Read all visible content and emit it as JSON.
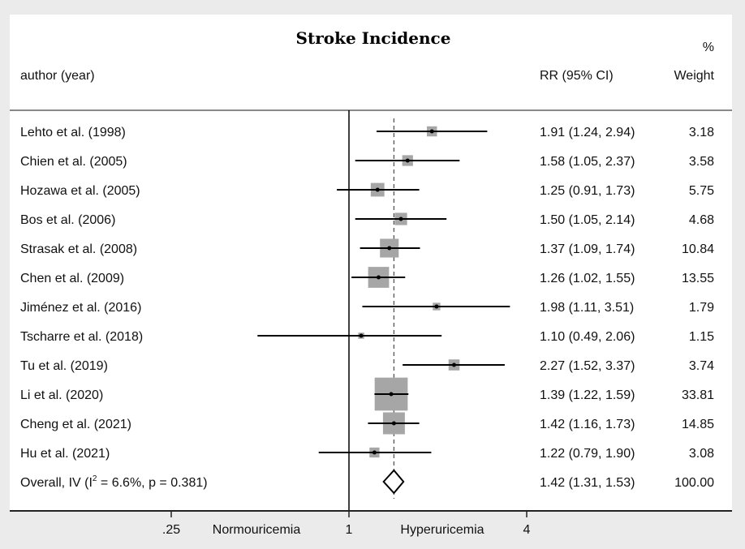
{
  "chart_data": {
    "type": "forest",
    "title": "Stroke Incidence",
    "headers": {
      "study": "author (year)",
      "effect": "RR (95% CI)",
      "weight_top": "%",
      "weight": "Weight"
    },
    "xscale": "log",
    "xticks": [
      {
        "value": 0.25,
        "label": ".25"
      },
      {
        "value": 1,
        "label": "1"
      },
      {
        "value": 4,
        "label": "4"
      }
    ],
    "xlabel_left": "Normouricemia",
    "xlabel_right": "Hyperuricemia",
    "null_line": 1,
    "studies": [
      {
        "label": "Lehto et al. (1998)",
        "rr": 1.91,
        "lo": 1.24,
        "hi": 2.94,
        "ci_text": "1.91 (1.24, 2.94)",
        "weight": "3.18"
      },
      {
        "label": "Chien et al. (2005)",
        "rr": 1.58,
        "lo": 1.05,
        "hi": 2.37,
        "ci_text": "1.58 (1.05, 2.37)",
        "weight": "3.58"
      },
      {
        "label": "Hozawa et al. (2005)",
        "rr": 1.25,
        "lo": 0.91,
        "hi": 1.73,
        "ci_text": "1.25 (0.91, 1.73)",
        "weight": "5.75"
      },
      {
        "label": "Bos et al. (2006)",
        "rr": 1.5,
        "lo": 1.05,
        "hi": 2.14,
        "ci_text": "1.50 (1.05, 2.14)",
        "weight": "4.68"
      },
      {
        "label": "Strasak et al. (2008)",
        "rr": 1.37,
        "lo": 1.09,
        "hi": 1.74,
        "ci_text": "1.37 (1.09, 1.74)",
        "weight": "10.84"
      },
      {
        "label": "Chen et al. (2009)",
        "rr": 1.26,
        "lo": 1.02,
        "hi": 1.55,
        "ci_text": "1.26 (1.02, 1.55)",
        "weight": "13.55"
      },
      {
        "label": "Jiménez et al. (2016)",
        "rr": 1.98,
        "lo": 1.11,
        "hi": 3.51,
        "ci_text": "1.98 (1.11, 3.51)",
        "weight": "1.79"
      },
      {
        "label": "Tscharre et al. (2018)",
        "rr": 1.1,
        "lo": 0.49,
        "hi": 2.06,
        "ci_text": "1.10 (0.49, 2.06)",
        "weight": "1.15"
      },
      {
        "label": "Tu et al. (2019)",
        "rr": 2.27,
        "lo": 1.52,
        "hi": 3.37,
        "ci_text": "2.27 (1.52, 3.37)",
        "weight": "3.74"
      },
      {
        "label": "Li et al. (2020)",
        "rr": 1.39,
        "lo": 1.22,
        "hi": 1.59,
        "ci_text": "1.39 (1.22, 1.59)",
        "weight": "33.81"
      },
      {
        "label": "Cheng et al. (2021)",
        "rr": 1.42,
        "lo": 1.16,
        "hi": 1.73,
        "ci_text": "1.42 (1.16, 1.73)",
        "weight": "14.85"
      },
      {
        "label": "Hu et al. (2021)",
        "rr": 1.22,
        "lo": 0.79,
        "hi": 1.9,
        "ci_text": "1.22 (0.79, 1.90)",
        "weight": "3.08"
      }
    ],
    "overall": {
      "label_pre": "Overall, IV (I",
      "label_sup": "2",
      "label_post": " = 6.6%, p = 0.381)",
      "rr": 1.42,
      "lo": 1.31,
      "hi": 1.53,
      "ci_text": "1.42 (1.31, 1.53)",
      "weight": "100.00"
    },
    "colors": {
      "box": "#a6a6a6",
      "line": "#000000",
      "background": "#ebebeb"
    }
  }
}
